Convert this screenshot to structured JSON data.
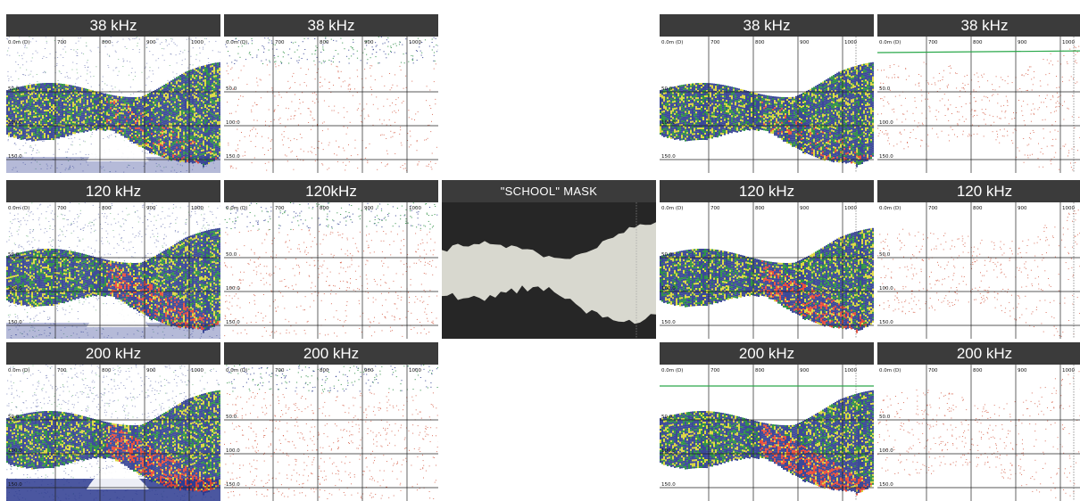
{
  "panels": [
    {
      "title": "38 kHz",
      "kind": "raw",
      "freq": 38,
      "labels": {
        "depth0": "0.0m (D)",
        "x": [
          "700",
          "800",
          "900",
          "1000"
        ],
        "depths": [
          "50.0",
          "100.0",
          "150.0"
        ]
      }
    },
    {
      "title": "38 kHz",
      "kind": "noise",
      "freq": 38,
      "labels": {
        "depth0": "0.0m (D)",
        "x": [
          "700",
          "800",
          "900",
          "1000"
        ],
        "depths": [
          "50.0",
          "100.0",
          "150.0"
        ]
      }
    },
    {
      "title": "",
      "kind": "blank"
    },
    {
      "title": "38 kHz",
      "kind": "school",
      "freq": 38,
      "labels": {
        "depth0": "0.0m (D)",
        "x": [
          "700",
          "800",
          "900",
          "1000"
        ],
        "depths": [
          "50.0",
          "100.0",
          "150.0"
        ]
      }
    },
    {
      "title": "38 kHz",
      "kind": "schoolnoise",
      "freq": 38,
      "labels": {
        "depth0": "0.0m (D)",
        "x": [
          "700",
          "800",
          "900",
          "1000"
        ],
        "depths": [
          "50.0",
          "100.0",
          "150.0"
        ]
      }
    },
    {
      "title": "120 kHz",
      "kind": "raw",
      "freq": 120,
      "labels": {
        "depth0": "0.0m (D)",
        "x": [
          "700",
          "800",
          "900",
          "1000"
        ],
        "depths": [
          "50.0",
          "100.0",
          "150.0"
        ]
      }
    },
    {
      "title": "120kHz",
      "kind": "noise",
      "freq": 120,
      "labels": {
        "depth0": "0.0m (D)",
        "x": [
          "700",
          "800",
          "900",
          "1000"
        ],
        "depths": [
          "50.0",
          "100.0",
          "150.0"
        ]
      }
    },
    {
      "title": "\"SCHOOL\" MASK",
      "kind": "mask"
    },
    {
      "title": "120 kHz",
      "kind": "school",
      "freq": 120,
      "labels": {
        "depth0": "0.0m (D)",
        "x": [
          "700",
          "800",
          "900",
          "1000"
        ],
        "depths": [
          "50.0",
          "100.0",
          "150.0"
        ]
      }
    },
    {
      "title": "120 kHz",
      "kind": "schoolnoise",
      "freq": 120,
      "labels": {
        "depth0": "0.0m (D)",
        "x": [
          "700",
          "800",
          "900",
          "1000"
        ],
        "depths": [
          "50.0",
          "100.0",
          "150.0"
        ]
      }
    },
    {
      "title": "200 kHz",
      "kind": "raw",
      "freq": 200,
      "labels": {
        "depth0": "0.0m (D)",
        "x": [
          "700",
          "800",
          "900",
          "1000"
        ],
        "depths": [
          "50.0",
          "100.0",
          "150.0"
        ]
      }
    },
    {
      "title": "200 kHz",
      "kind": "noise",
      "freq": 200,
      "labels": {
        "depth0": "0.0m (D)",
        "x": [
          "700",
          "800",
          "900",
          "1000"
        ],
        "depths": [
          "50.0",
          "100.0",
          "150.0"
        ]
      }
    },
    {
      "title": "",
      "kind": "blank"
    },
    {
      "title": "200 kHz",
      "kind": "school",
      "freq": 200,
      "labels": {
        "depth0": "0.0m (D)",
        "x": [
          "700",
          "800",
          "900",
          "1000"
        ],
        "depths": [
          "50.0",
          "100.0",
          "150.0"
        ]
      }
    },
    {
      "title": "200 kHz",
      "kind": "schoolnoise",
      "freq": 200,
      "labels": {
        "depth0": "0.0m (D)",
        "x": [
          "700",
          "800",
          "900",
          "1000"
        ],
        "depths": [
          "50.0",
          "100.0",
          "150.0"
        ]
      }
    }
  ],
  "colors": {
    "header_bg": "#3b3b3b",
    "header_text": "#ffffff",
    "echo_weak": "#2b3a8f",
    "echo_mid": "#1f8a3a",
    "echo_strong": "#d9d530",
    "echo_peak": "#e8412c",
    "noise_dot": "#d2533a",
    "mask_bg": "#262626",
    "mask_fill": "#d8d8cf",
    "seabed_line": "#2aa84a"
  }
}
